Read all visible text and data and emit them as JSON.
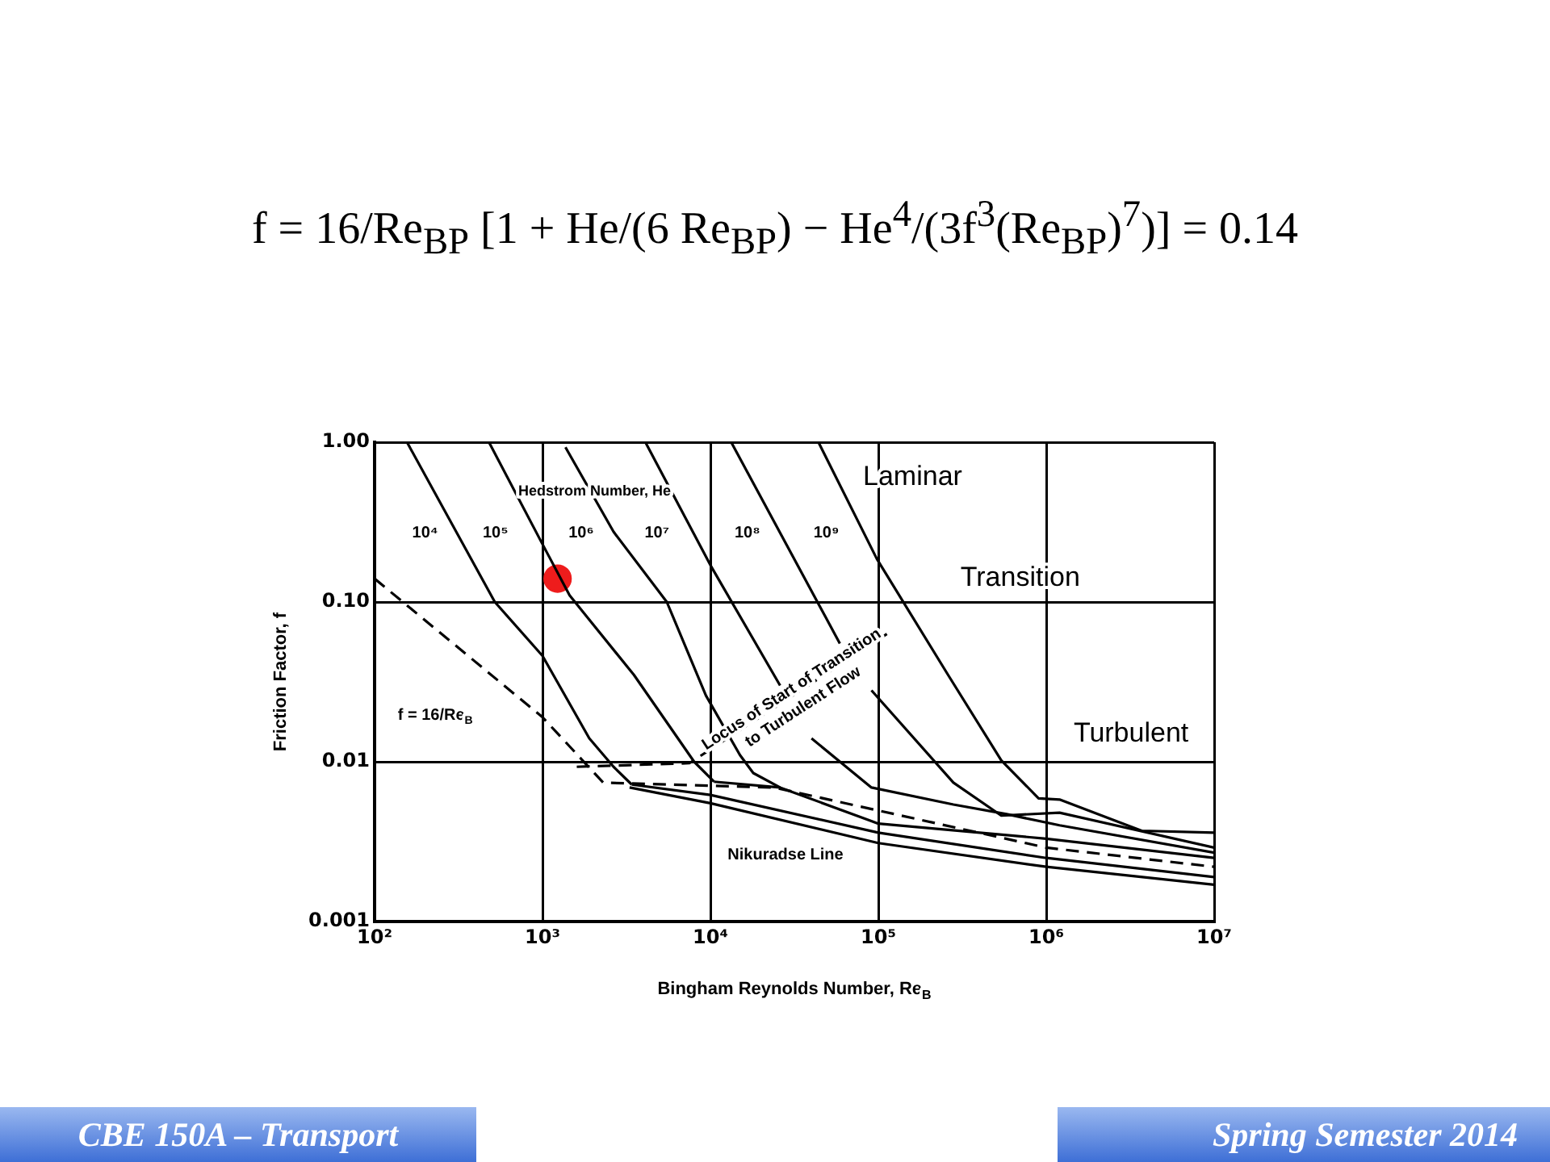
{
  "chart_data": {
    "type": "line",
    "title": "f = 16/Re$_{BP}$ [1 + He/(6 Re$_{BP}$) − He$^{4}$/(3f$^{3}$(Re$_{BP}$)$^{7}$)] = 0.14",
    "xlabel": "Bingham Reynolds Number, Re$_{B}$",
    "ylabel": "Friction Factor, f",
    "log": "xy",
    "xlim": [
      100,
      10000000
    ],
    "ylim": [
      0.001,
      1
    ],
    "xticks": [
      {
        "value": 100,
        "label": "10²"
      },
      {
        "value": 1000,
        "label": "10³"
      },
      {
        "value": 10000,
        "label": "10⁴"
      },
      {
        "value": 100000,
        "label": "10⁵"
      },
      {
        "value": 1000000,
        "label": "10⁶"
      },
      {
        "value": 10000000,
        "label": "10⁷"
      }
    ],
    "yticks": [
      {
        "value": 0.001,
        "label": "0.001"
      },
      {
        "value": 0.01,
        "label": "0.01"
      },
      {
        "value": 0.1,
        "label": "0.10"
      },
      {
        "value": 1,
        "label": "1.00"
      }
    ],
    "grid": true,
    "line_style": "solid",
    "series": [
      {
        "color": "#000000",
        "x": [
          156,
          520,
          1000,
          1900,
          2650,
          3400
        ],
        "values": [
          1.0,
          0.1,
          0.046,
          0.014,
          0.0093,
          0.0072
        ]
      },
      {
        "color": "#000000",
        "x": [
          480,
          1000,
          1450,
          3500,
          8000,
          10500
        ],
        "values": [
          1.0,
          0.23,
          0.11,
          0.035,
          0.01,
          0.0075
        ]
      },
      {
        "color": "#000000",
        "x": [
          1370,
          2650,
          5500,
          9400,
          15000,
          18000,
          26000
        ],
        "values": [
          0.93,
          0.275,
          0.1,
          0.026,
          0.011,
          0.0085,
          0.0069
        ]
      },
      {
        "color": "#000000",
        "x": [
          4100,
          10000,
          26000,
          33000,
          40000,
          91000,
          280000,
          580000,
          1200000,
          10000000
        ],
        "values": [
          1.0,
          0.17,
          0.03,
          null,
          0.014,
          0.0069,
          0.0054,
          0.0047,
          0.004,
          0.0027
        ]
      },
      {
        "color": "#000000",
        "x": [
          13300,
          59000,
          75000,
          91000,
          280000,
          540000,
          1200000,
          10000000
        ],
        "values": [
          1.0,
          0.055,
          null,
          0.028,
          0.0074,
          0.0046,
          0.0048,
          0.0029
        ]
      },
      {
        "color": "#000000",
        "x": [
          44000,
          98000,
          260000,
          540000,
          900000,
          1200000,
          3700000,
          10000000
        ],
        "values": [
          1.0,
          0.186,
          0.035,
          0.0102,
          0.0059,
          0.0058,
          0.0037,
          0.0036
        ]
      },
      {
        "color": "#000000",
        "x": [
          3300,
          10000,
          100000,
          1000000,
          10000000
        ],
        "values": [
          0.0069,
          0.0055,
          0.0031,
          0.0022,
          0.0017
        ]
      },
      {
        "color": "#000000",
        "x": [
          3400,
          10000,
          100000,
          1000000,
          10000000
        ],
        "values": [
          0.0072,
          0.0062,
          0.0036,
          0.0025,
          0.0019
        ]
      },
      {
        "color": "#000000",
        "x": [
          10500,
          26000,
          100000,
          1000000,
          10000000
        ],
        "values": [
          0.0075,
          0.0069,
          0.0041,
          0.0033,
          0.0025
        ]
      },
      {
        "color": "#000000",
        "line_style": "dashed",
        "x": [
          100,
          1000,
          2300,
          24000,
          1000000,
          10000000
        ],
        "values": [
          0.14,
          0.019,
          0.0074,
          0.0069,
          0.0029,
          0.0022
        ]
      },
      {
        "color": "#000000",
        "line_style": "dashed",
        "x": [
          1600,
          7500,
          120000
        ],
        "values": [
          0.0093,
          0.0098,
          0.066
        ]
      },
      {
        "type": "scatter",
        "marker": "circle",
        "color": "#ee1c1c",
        "x": [
          1230
        ],
        "values": [
          0.14
        ]
      }
    ],
    "annotations": [
      "Hedstrom Number, He",
      "10⁴",
      "10⁵",
      "10⁶",
      "10⁷",
      "10⁸",
      "10⁹",
      "f = 16/Re$_{B}$",
      "Locus of Start of Transition to Turbulent Flow",
      "Nikuradse Line",
      "Laminar",
      "Transition",
      "Turbulent",
      "CBE 150A – Transport",
      "Spring Semester 2014"
    ]
  }
}
